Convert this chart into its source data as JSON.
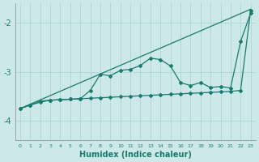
{
  "xlabel": "Humidex (Indice chaleur)",
  "background_color": "#cce8e8",
  "grid_color": "#b0d8d8",
  "line_color": "#1a7a6e",
  "xlim": [
    -0.5,
    23.5
  ],
  "ylim": [
    -4.4,
    -1.6
  ],
  "yticks": [
    -4,
    -3,
    -2
  ],
  "xticks": [
    0,
    1,
    2,
    3,
    4,
    5,
    6,
    7,
    8,
    9,
    10,
    11,
    12,
    13,
    14,
    15,
    16,
    17,
    18,
    19,
    20,
    21,
    22,
    23
  ],
  "series1_x": [
    0,
    1,
    2,
    3,
    4,
    5,
    6,
    7,
    8,
    9,
    10,
    11,
    12,
    13,
    14,
    15,
    16,
    17,
    18,
    19,
    20,
    21,
    22,
    23
  ],
  "series1_y": [
    -3.75,
    -3.68,
    -3.62,
    -3.58,
    -3.57,
    -3.56,
    -3.55,
    -3.54,
    -3.53,
    -3.52,
    -3.51,
    -3.5,
    -3.49,
    -3.48,
    -3.47,
    -3.46,
    -3.45,
    -3.44,
    -3.43,
    -3.42,
    -3.41,
    -3.4,
    -3.38,
    -1.75
  ],
  "series2_x": [
    0,
    1,
    2,
    3,
    4,
    5,
    6,
    7,
    8,
    9,
    10,
    11,
    12,
    13,
    14,
    15,
    16,
    17,
    18,
    19,
    20,
    21,
    22,
    23
  ],
  "series2_y": [
    -3.75,
    -3.68,
    -3.6,
    -3.58,
    -3.57,
    -3.56,
    -3.55,
    -3.38,
    -3.05,
    -3.08,
    -2.97,
    -2.95,
    -2.87,
    -2.72,
    -2.75,
    -2.88,
    -3.22,
    -3.28,
    -3.22,
    -3.32,
    -3.3,
    -3.33,
    -2.38,
    -1.8
  ],
  "series3_x": [
    0,
    23
  ],
  "series3_y": [
    -3.75,
    -1.72
  ]
}
